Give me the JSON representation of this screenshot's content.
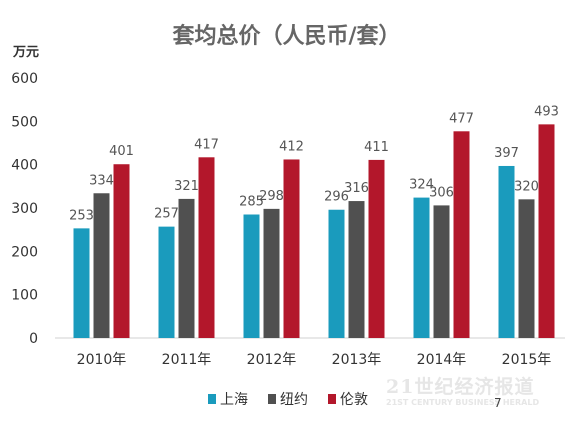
{
  "chart_data": {
    "type": "bar",
    "title": "套均总价（人民币/套）",
    "ylabel": "万元",
    "xlabel": "",
    "categories": [
      "2010年",
      "2011年",
      "2012年",
      "2013年",
      "2014年",
      "2015年"
    ],
    "series": [
      {
        "name": "上海",
        "color": "#1a9bbd",
        "values": [
          253,
          257,
          285,
          296,
          324,
          397
        ]
      },
      {
        "name": "纽约",
        "color": "#505050",
        "values": [
          334,
          321,
          298,
          316,
          306,
          320
        ]
      },
      {
        "name": "伦敦",
        "color": "#b3172b",
        "values": [
          401,
          417,
          412,
          411,
          477,
          493
        ]
      }
    ],
    "ylim": [
      0,
      600
    ],
    "yticks": [
      "0",
      "100",
      "200",
      "300",
      "400",
      "500",
      "600"
    ],
    "grid": false,
    "legend_position": "bottom"
  },
  "watermark": {
    "main": "21世纪经济报道",
    "sub": "21ST CENTURY BUSINESS HERALD"
  },
  "page_number": "7"
}
